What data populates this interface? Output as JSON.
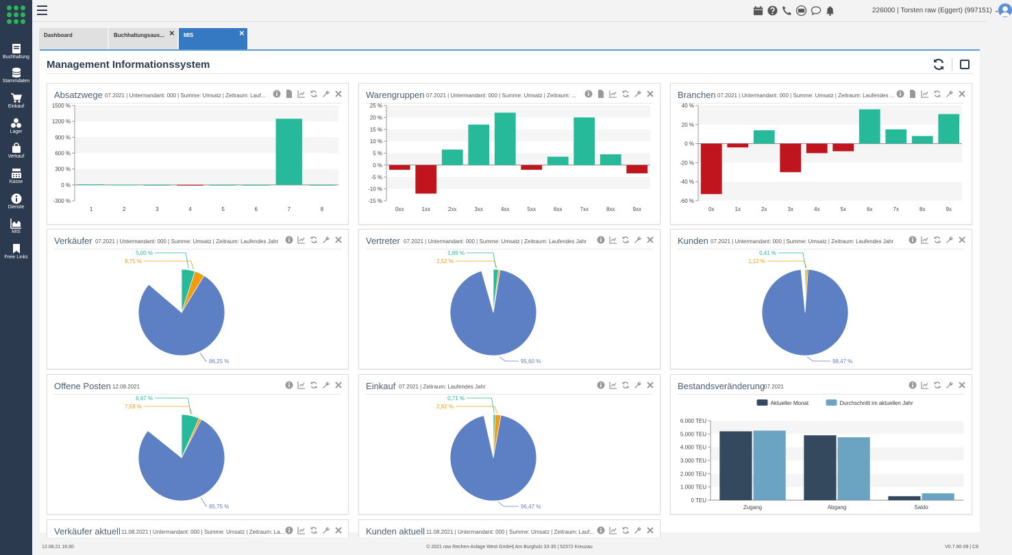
{
  "sidebar": {
    "items": [
      {
        "label": "Buchhaltung",
        "icon": "book-icon"
      },
      {
        "label": "Stammdaten",
        "icon": "database-icon"
      },
      {
        "label": "Einkauf",
        "icon": "cart-icon"
      },
      {
        "label": "Lager",
        "icon": "boxes-icon"
      },
      {
        "label": "Verkauf",
        "icon": "bag-icon"
      },
      {
        "label": "Kasse",
        "icon": "register-icon"
      },
      {
        "label": "Dienste",
        "icon": "info-icon"
      },
      {
        "label": "MIS",
        "icon": "area-chart-icon"
      },
      {
        "label": "Freie Links",
        "icon": "bookmark-icon"
      }
    ]
  },
  "header": {
    "user_label": "226000 | Torsten raw (Eggert) (997151)",
    "icons": [
      "calendar-icon",
      "help-icon",
      "phone-icon",
      "keyboard-icon",
      "chat-icon",
      "bell-icon"
    ]
  },
  "tabs": [
    {
      "label": "Dashboard",
      "closable": false,
      "active": false
    },
    {
      "label": "Buchhaltungsaus...",
      "closable": true,
      "active": false
    },
    {
      "label": "MIS",
      "closable": true,
      "active": true
    }
  ],
  "page": {
    "title": "Management Informationssystem"
  },
  "colors": {
    "green": "#26b99a",
    "red": "#c0141e",
    "orange": "#f39c12",
    "blue": "#5d7fc4",
    "dark": "#34495e",
    "lightblue": "#6aa4c2",
    "accent": "#3579c3"
  },
  "panels": {
    "absatzwege": {
      "title": "Absatzwege",
      "subtitle": "07.2021 | Untermandant: 000 | Summe: Umsatz | Zeitraum: Lauf..."
    },
    "warengruppen": {
      "title": "Warengruppen",
      "subtitle": "07.2021 | Untermandant: 000 | Summe: Umsatz | Zeitraum: ..."
    },
    "branchen": {
      "title": "Branchen",
      "subtitle": "07.2021 | Untermandant: 000 | Summe: Umsatz | Zeitraum: Laufendes ..."
    },
    "verkaeufer": {
      "title": "Verkäufer",
      "subtitle": "07.2021 | Untermandant: 000 | Summe: Umsatz | Zeitraum: Laufendes Jahr"
    },
    "vertreter": {
      "title": "Vertreter",
      "subtitle": "07.2021 | Untermandant: 000 | Summe: Umsatz | Zeitraum: Laufendes Jahr"
    },
    "kunden": {
      "title": "Kunden",
      "subtitle": "07.2021 | Untermandant: 000 | Summe: Umsatz | Zeitraum: Laufendes Jahr"
    },
    "offene_posten": {
      "title": "Offene Posten",
      "subtitle": "12.08.2021"
    },
    "einkauf": {
      "title": "Einkauf",
      "subtitle": "07.2021 | Zeitraum: Laufendes Jahr"
    },
    "bestand": {
      "title": "Bestandsveränderung",
      "subtitle": "07.2021"
    },
    "verkaeufer_aktuell": {
      "title": "Verkäufer aktuell",
      "subtitle": "11.08.2021 | Untermandant: 000 | Summe: Umsatz | Zeitraum: La..."
    },
    "kunden_aktuell": {
      "title": "Kunden aktuell",
      "subtitle": "11.08.2021 | Untermandant: 000 | Summe: Umsatz | Zeitraum: Lauf..."
    }
  },
  "chart_data": [
    {
      "id": "absatzwege",
      "type": "bar",
      "categories": [
        "1",
        "2",
        "3",
        "4",
        "5",
        "6",
        "7",
        "8"
      ],
      "values": [
        10,
        4,
        0,
        -4,
        0,
        0,
        1250,
        0
      ],
      "ylim": [
        -300,
        1500
      ],
      "yticks": [
        "1500 %",
        "1200 %",
        "900 %",
        "600 %",
        "300 %",
        "0 %",
        "-300 %"
      ],
      "grid": true
    },
    {
      "id": "warengruppen",
      "type": "bar",
      "categories": [
        "0xx",
        "1xx",
        "2xx",
        "3xx",
        "4xx",
        "5xx",
        "6xx",
        "7xx",
        "8xx",
        "9xx"
      ],
      "values": [
        -2,
        -12,
        6.5,
        17,
        22,
        -2,
        3.5,
        20,
        4.5,
        -3.5
      ],
      "ylim": [
        -15,
        25
      ],
      "yticks": [
        "25 %",
        "20 %",
        "15 %",
        "10 %",
        "5 %",
        "0 %",
        "-5 %",
        "-10 %",
        "-15 %"
      ],
      "grid": true
    },
    {
      "id": "branchen",
      "type": "bar",
      "categories": [
        "0x",
        "1x",
        "2x",
        "3x",
        "4x",
        "5x",
        "6x",
        "7x",
        "8x",
        "9x"
      ],
      "values": [
        -53,
        -4,
        14,
        -30,
        -10,
        -8,
        36,
        15,
        8,
        31
      ],
      "ylim": [
        -60,
        40
      ],
      "yticks": [
        "40 %",
        "20 %",
        "0 %",
        "-20 %",
        "-40 %",
        "-60 %"
      ],
      "grid": true
    },
    {
      "id": "verkaeufer",
      "type": "pie",
      "slices": [
        {
          "value": 86.25,
          "label": "86,25 %",
          "color": "blue"
        },
        {
          "value": 5.0,
          "label": "5,00 %",
          "color": "green"
        },
        {
          "value": 8.75,
          "label": "8,75 %",
          "color": "orange"
        }
      ]
    },
    {
      "id": "vertreter",
      "type": "pie",
      "slices": [
        {
          "value": 95.6,
          "label": "95,60 %",
          "color": "blue"
        },
        {
          "value": 1.89,
          "label": "1,89 %",
          "color": "green"
        },
        {
          "value": 2.52,
          "label": "2,52 %",
          "color": "orange"
        }
      ]
    },
    {
      "id": "kunden",
      "type": "pie",
      "slices": [
        {
          "value": 98.47,
          "label": "98,47 %",
          "color": "blue"
        },
        {
          "value": 0.41,
          "label": "0,41 %",
          "color": "green"
        },
        {
          "value": 1.12,
          "label": "1,12 %",
          "color": "orange"
        }
      ]
    },
    {
      "id": "offene_posten",
      "type": "pie",
      "slices": [
        {
          "value": 85.75,
          "label": "85,75 %",
          "color": "blue"
        },
        {
          "value": 6.67,
          "label": "6,67 %",
          "color": "green"
        },
        {
          "value": 7.59,
          "label": "7,59 %",
          "color": "orange"
        }
      ]
    },
    {
      "id": "einkauf",
      "type": "pie",
      "slices": [
        {
          "value": 96.47,
          "label": "96,47 %",
          "color": "blue"
        },
        {
          "value": 0.71,
          "label": "0,71 %",
          "color": "green"
        },
        {
          "value": 2.82,
          "label": "2,82 %",
          "color": "orange"
        }
      ]
    },
    {
      "id": "bestand",
      "type": "bar",
      "categories": [
        "Zugang",
        "Abgang",
        "Saldo"
      ],
      "series": [
        {
          "name": "Aktueller Monat",
          "values": [
            5200,
            4900,
            300
          ],
          "color": "dark"
        },
        {
          "name": "Durchschnitt im aktuellen Jahr",
          "values": [
            5250,
            4750,
            520
          ],
          "color": "lightblue"
        }
      ],
      "ylim": [
        0,
        6000
      ],
      "yticks": [
        "6.000 TEU",
        "5.000 TEU",
        "4.000 TEU",
        "3.000 TEU",
        "2.000 TEU",
        "1.000 TEU",
        "0 TEU"
      ],
      "legend": "top",
      "grid": true
    }
  ],
  "footer": {
    "left": "12.08.21 16:30",
    "center": "© 2021 raw Rechen-Anlage West GmbH| Am Burgholz 33-35 | 52372 Kreuzau",
    "right": "V0.7.90-39 | C8"
  }
}
